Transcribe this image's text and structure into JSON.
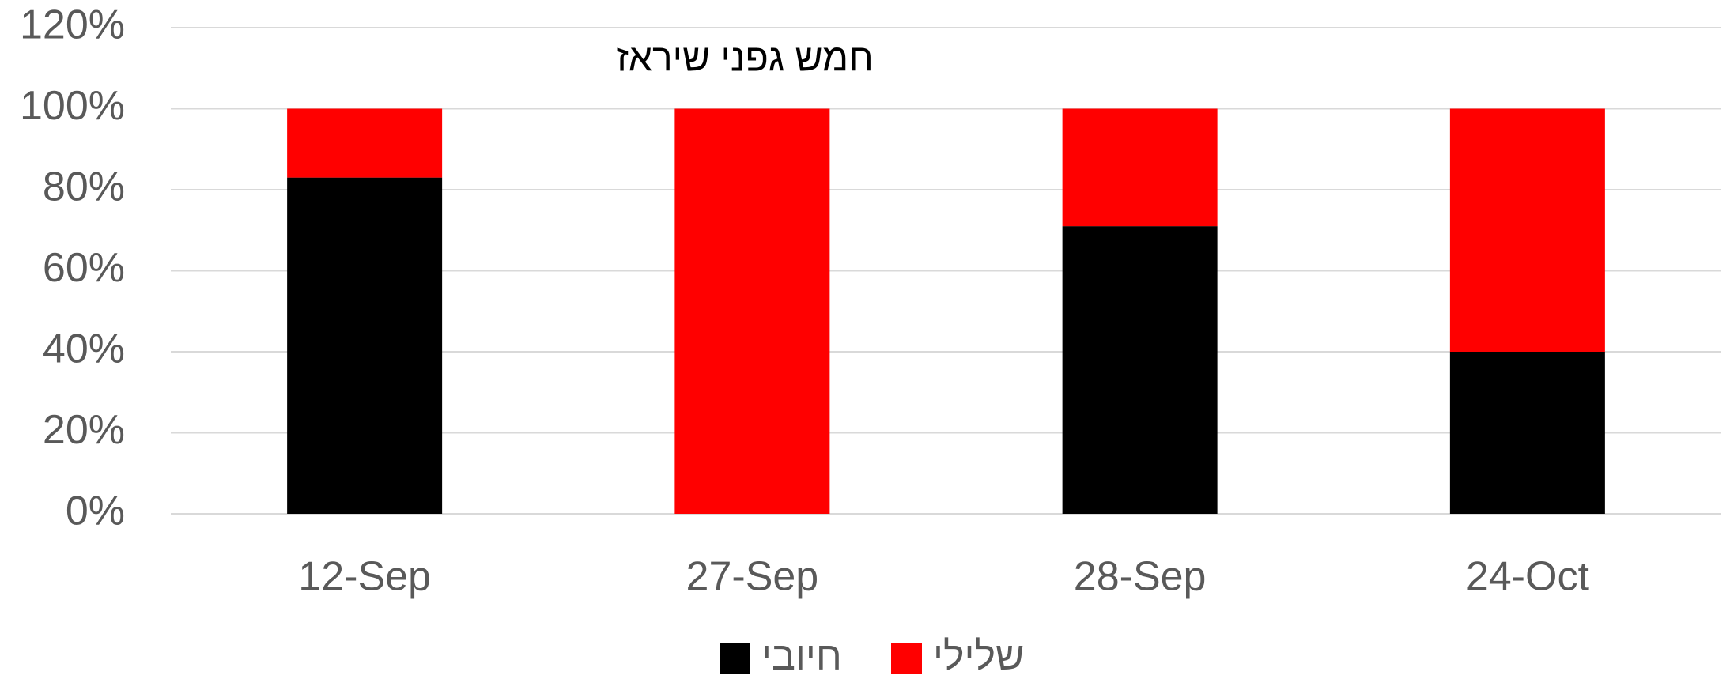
{
  "chart_data": {
    "type": "bar",
    "stacked": true,
    "title": "חמש גפני שיראז",
    "categories": [
      "12-Sep",
      "27-Sep",
      "28-Sep",
      "24-Oct"
    ],
    "series": [
      {
        "name": "חיובי",
        "color": "#000000",
        "values": [
          83,
          0,
          71,
          40
        ]
      },
      {
        "name": "שלילי",
        "color": "#ff0000",
        "values": [
          17,
          100,
          29,
          60
        ]
      }
    ],
    "ylim": [
      0,
      120
    ],
    "yticks": [
      {
        "value": 0,
        "label": "0%"
      },
      {
        "value": 20,
        "label": "20%"
      },
      {
        "value": 40,
        "label": "40%"
      },
      {
        "value": 60,
        "label": "60%"
      },
      {
        "value": 80,
        "label": "80%"
      },
      {
        "value": 100,
        "label": "100%"
      },
      {
        "value": 120,
        "label": "120%"
      }
    ],
    "grid": true,
    "legend": "bottom"
  }
}
